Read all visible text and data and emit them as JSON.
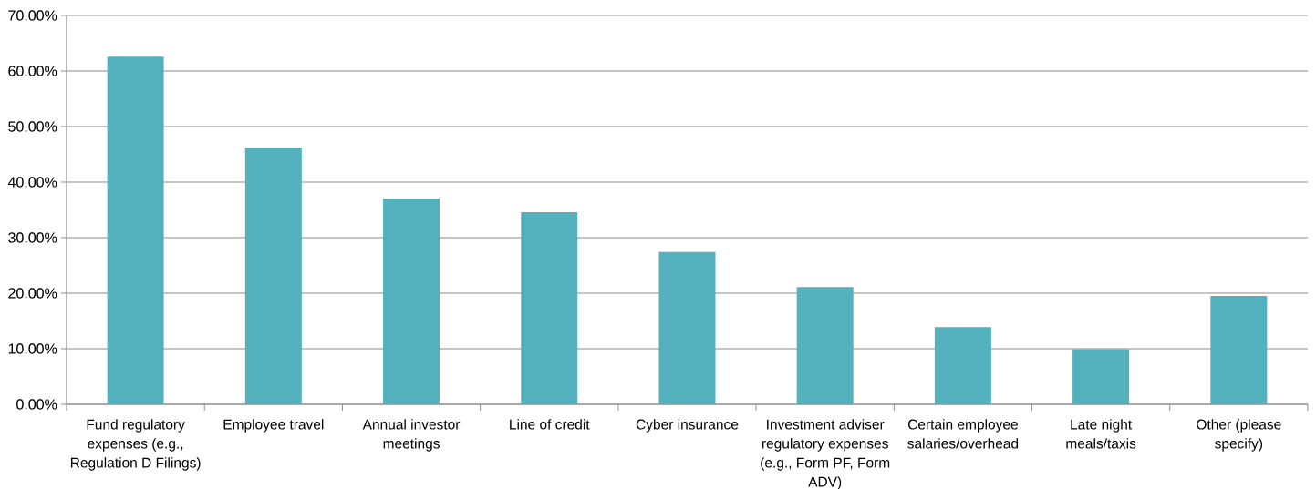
{
  "chart_data": {
    "type": "bar",
    "categories": [
      "Fund regulatory expenses (e.g., Regulation D Filings)",
      "Employee travel",
      "Annual investor meetings",
      "Line of credit",
      "Cyber insurance",
      "Investment adviser regulatory expenses (e.g., Form PF, Form ADV)",
      "Certain employee salaries/overhead",
      "Late night meals/taxis",
      "Other (please specify)"
    ],
    "values": [
      62.6,
      46.2,
      37.0,
      34.6,
      27.4,
      21.1,
      13.9,
      9.9,
      19.5
    ],
    "color": "#52b1bd",
    "ylim": [
      0,
      70
    ],
    "yticks": [
      {
        "value": 0,
        "label": "0.00%"
      },
      {
        "value": 10,
        "label": "10.00%"
      },
      {
        "value": 20,
        "label": "20.00%"
      },
      {
        "value": 30,
        "label": "30.00%"
      },
      {
        "value": 40,
        "label": "40.00%"
      },
      {
        "value": 50,
        "label": "50.00%"
      },
      {
        "value": 60,
        "label": "60.00%"
      },
      {
        "value": 70,
        "label": "70.00%"
      }
    ],
    "grid": "y"
  }
}
